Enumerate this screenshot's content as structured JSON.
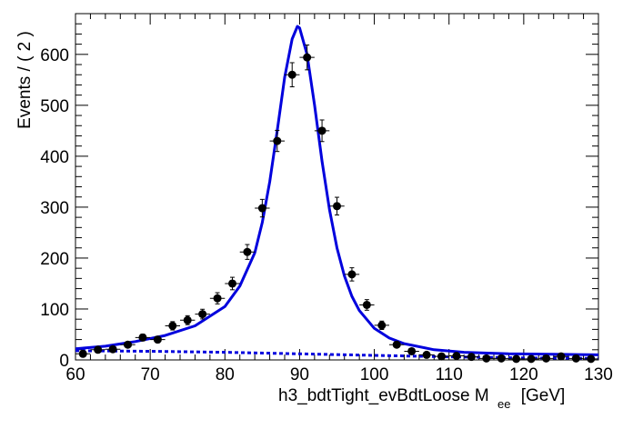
{
  "chart_data": {
    "type": "scatter",
    "xlabel": "h3_bdtTight_evBdtLoose  M",
    "xlabel_sub": "ee",
    "xlabel_unit": "[GeV]",
    "ylabel": "Events / ( 2 )",
    "xlim": [
      60,
      130
    ],
    "ylim": [
      0,
      680
    ],
    "x_ticks": [
      60,
      70,
      80,
      90,
      100,
      110,
      120,
      130
    ],
    "y_ticks": [
      0,
      100,
      200,
      300,
      400,
      500,
      600
    ],
    "grid": false,
    "legend": "none",
    "series": [
      {
        "kind": "points-with-errors",
        "color": "#000000",
        "x_err": 1,
        "x": [
          61,
          63,
          65,
          67,
          69,
          71,
          73,
          75,
          77,
          79,
          81,
          83,
          85,
          87,
          89,
          91,
          93,
          95,
          97,
          99,
          101,
          103,
          105,
          107,
          109,
          111,
          113,
          115,
          117,
          119,
          121,
          123,
          125,
          127,
          129
        ],
        "y": [
          12,
          20,
          21,
          30,
          44,
          40,
          67,
          78,
          90,
          121,
          150,
          212,
          298,
          430,
          560,
          594,
          450,
          302,
          168,
          108,
          68,
          30,
          17,
          10,
          7,
          8,
          6,
          3,
          3,
          2,
          2,
          3,
          7,
          3,
          2
        ]
      },
      {
        "kind": "curve",
        "color": "#0000dd",
        "style": "solid",
        "x": [
          60,
          64,
          68,
          72,
          76,
          80,
          82,
          84,
          85,
          86,
          87,
          88,
          89,
          89.7,
          90,
          91,
          92,
          93,
          94,
          95,
          96,
          97,
          98,
          100,
          102,
          104,
          108,
          112,
          118,
          124,
          130
        ],
        "y": [
          22,
          27,
          36,
          48,
          67,
          105,
          145,
          210,
          270,
          350,
          450,
          555,
          630,
          655,
          652,
          600,
          500,
          390,
          295,
          220,
          165,
          125,
          97,
          62,
          43,
          32,
          20,
          15,
          12,
          11,
          10
        ]
      },
      {
        "kind": "curve",
        "color": "#0000dd",
        "style": "dashed",
        "x": [
          60,
          70,
          80,
          90,
          100,
          110,
          120,
          130
        ],
        "y": [
          18,
          17,
          15,
          12,
          9,
          6,
          4,
          3
        ]
      }
    ]
  }
}
